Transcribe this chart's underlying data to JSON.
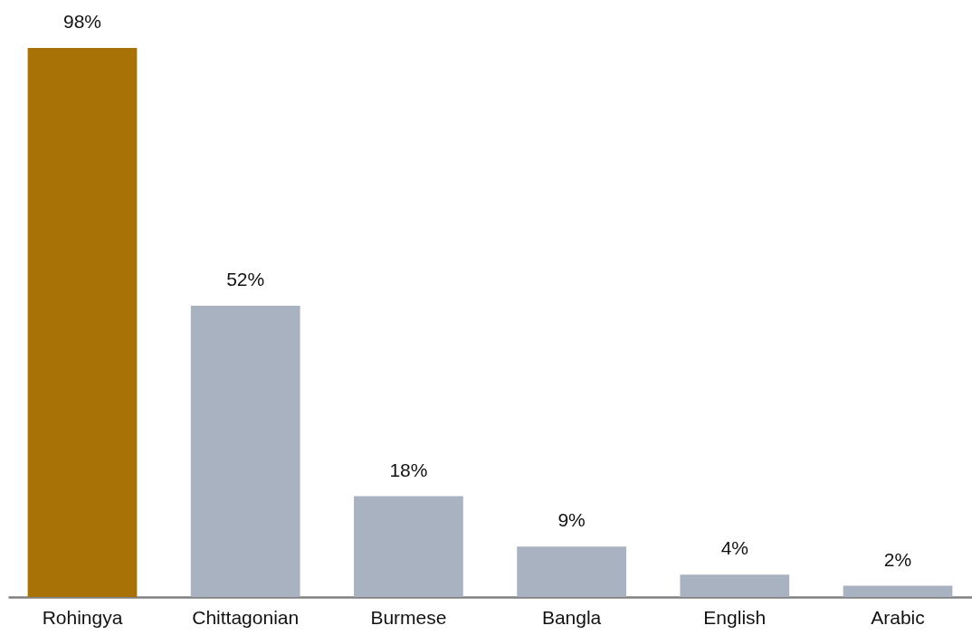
{
  "chart_data": {
    "type": "bar",
    "categories": [
      "Rohingya",
      "Chittagonian",
      "Burmese",
      "Bangla",
      "English",
      "Arabic"
    ],
    "values": [
      98,
      52,
      18,
      9,
      4,
      2
    ],
    "value_labels": [
      "98%",
      "52%",
      "18%",
      "9%",
      "4%",
      "2%"
    ],
    "colors": [
      "#a87206",
      "#a9b2c1",
      "#a9b2c1",
      "#a9b2c1",
      "#a9b2c1",
      "#a9b2c1"
    ]
  }
}
